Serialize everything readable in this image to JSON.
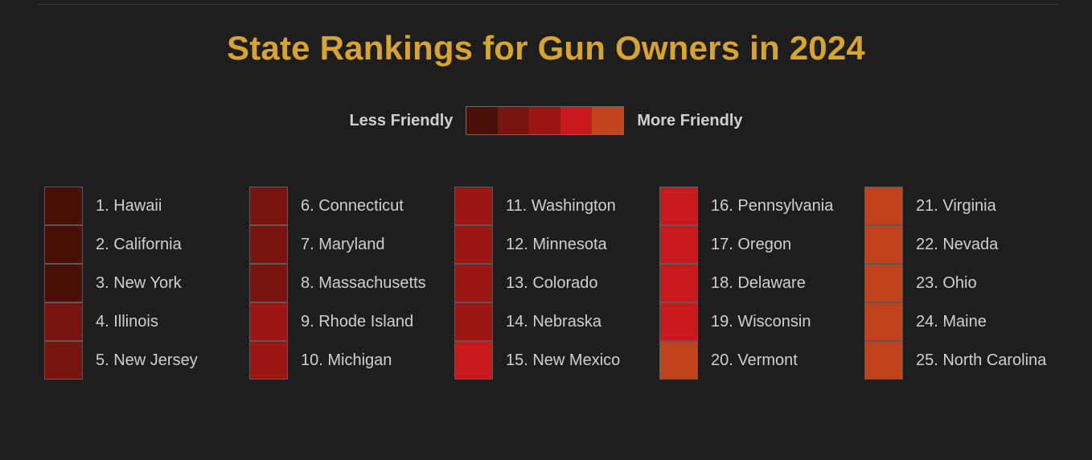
{
  "chart_data": {
    "type": "table",
    "title": "State Rankings for Gun Owners in 2024",
    "legend": {
      "low_label": "Less Friendly",
      "high_label": "More Friendly",
      "colors": [
        "#4a0f07",
        "#7a1410",
        "#9b1612",
        "#c8191d",
        "#c2441f"
      ]
    },
    "items": [
      {
        "label": "1. Hawaii",
        "rank": 1,
        "color": "#4a0f07"
      },
      {
        "label": "2. California",
        "rank": 2,
        "color": "#4a0f07"
      },
      {
        "label": "3. New York",
        "rank": 3,
        "color": "#4a0f07"
      },
      {
        "label": "4. Illinois",
        "rank": 4,
        "color": "#7a1410"
      },
      {
        "label": "5. New Jersey",
        "rank": 5,
        "color": "#7a1410"
      },
      {
        "label": "6. Connecticut",
        "rank": 6,
        "color": "#7a1410"
      },
      {
        "label": "7. Maryland",
        "rank": 7,
        "color": "#7a1410"
      },
      {
        "label": "8. Massachusetts",
        "rank": 8,
        "color": "#7a1410"
      },
      {
        "label": "9. Rhode Island",
        "rank": 9,
        "color": "#9b1612"
      },
      {
        "label": "10. Michigan",
        "rank": 10,
        "color": "#9b1612"
      },
      {
        "label": "11. Washington",
        "rank": 11,
        "color": "#9b1612"
      },
      {
        "label": "12. Minnesota",
        "rank": 12,
        "color": "#9b1612"
      },
      {
        "label": "13. Colorado",
        "rank": 13,
        "color": "#9b1612"
      },
      {
        "label": "14. Nebraska",
        "rank": 14,
        "color": "#9b1612"
      },
      {
        "label": "15. New Mexico",
        "rank": 15,
        "color": "#c8191d"
      },
      {
        "label": "16. Pennsylvania",
        "rank": 16,
        "color": "#c8191d"
      },
      {
        "label": "17. Oregon",
        "rank": 17,
        "color": "#c8191d"
      },
      {
        "label": "18. Delaware",
        "rank": 18,
        "color": "#c8191d"
      },
      {
        "label": "19. Wisconsin",
        "rank": 19,
        "color": "#c8191d"
      },
      {
        "label": "20. Vermont",
        "rank": 20,
        "color": "#c2441f"
      },
      {
        "label": "21. Virginia",
        "rank": 21,
        "color": "#c2441f"
      },
      {
        "label": "22. Nevada",
        "rank": 22,
        "color": "#c2441f"
      },
      {
        "label": "23. Ohio",
        "rank": 23,
        "color": "#c2441f"
      },
      {
        "label": "24. Maine",
        "rank": 24,
        "color": "#c2441f"
      },
      {
        "label": "25. North Carolina",
        "rank": 25,
        "color": "#c2441f"
      }
    ]
  }
}
